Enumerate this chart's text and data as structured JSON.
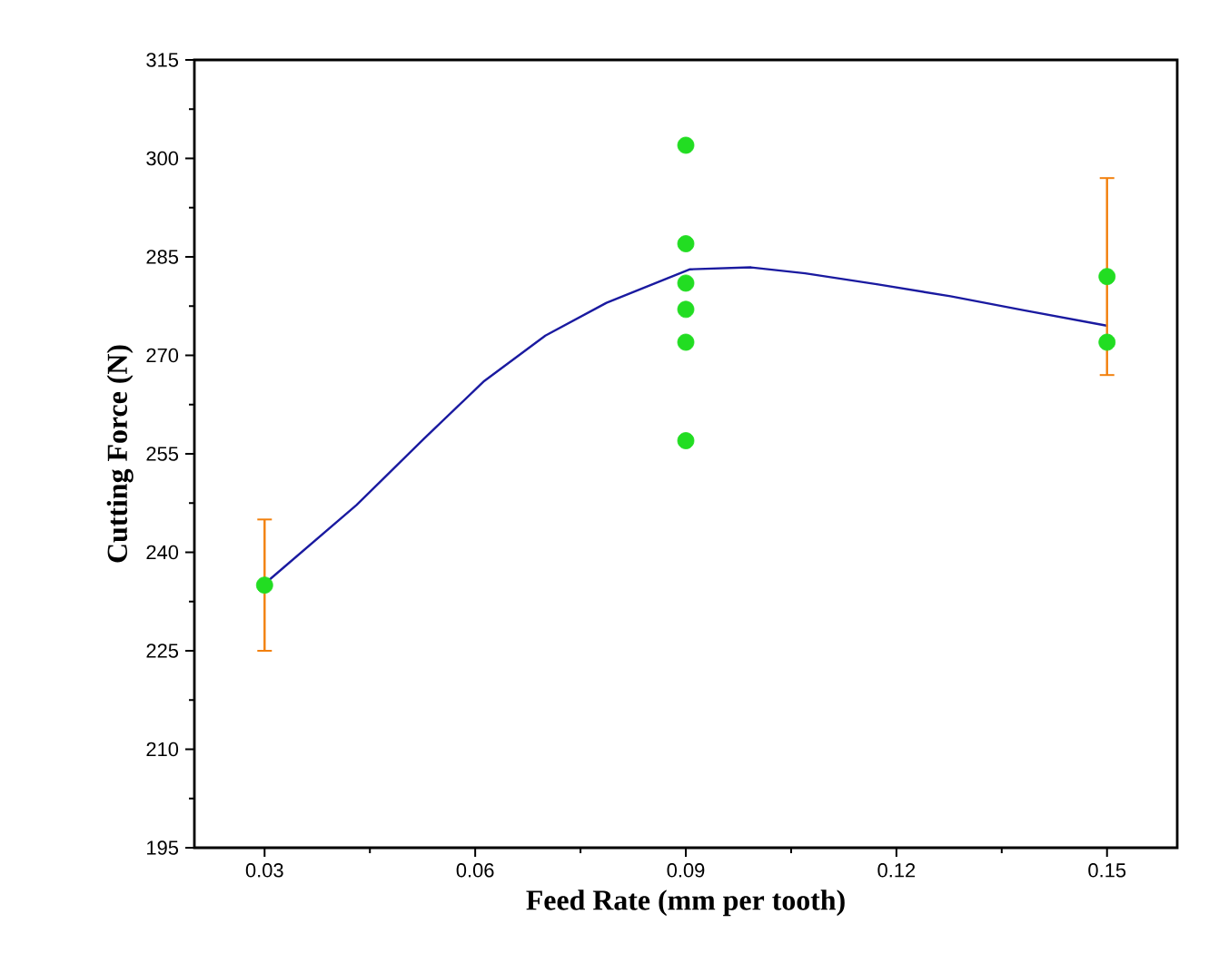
{
  "chart_data": {
    "type": "scatter",
    "xlabel": "Feed Rate (mm per tooth)",
    "ylabel": "Cutting Force (N)",
    "xlim": [
      0.02,
      0.16
    ],
    "ylim": [
      195,
      315
    ],
    "xticks": [
      0.03,
      0.06,
      0.09,
      0.12,
      0.15
    ],
    "yticks": [
      195,
      210,
      225,
      240,
      255,
      270,
      285,
      300,
      315
    ],
    "series": [
      {
        "type": "line",
        "color": "#1a1aa0",
        "marker": "none",
        "x": [
          0.03,
          0.0431,
          0.0527,
          0.0613,
          0.07,
          0.0787,
          0.0873,
          0.0906,
          0.0993,
          0.107,
          0.1174,
          0.1277,
          0.138,
          0.1501
        ],
        "values": [
          235.2,
          247.2,
          257.3,
          266.1,
          273.0,
          278.0,
          281.7,
          283.1,
          283.4,
          282.5,
          280.8,
          279.0,
          276.9,
          274.5
        ]
      },
      {
        "color": "#22dd22",
        "marker": "circle",
        "x": [
          0.03,
          0.15
        ],
        "values": [
          235,
          282
        ],
        "errors": [
          10,
          15
        ]
      },
      {
        "color": "#22dd22",
        "marker": "circle",
        "x": [
          0.09,
          0.09,
          0.09,
          0.09,
          0.09,
          0.09,
          0.15
        ],
        "values": [
          302,
          287,
          281,
          277,
          272,
          257,
          272
        ]
      }
    ]
  }
}
